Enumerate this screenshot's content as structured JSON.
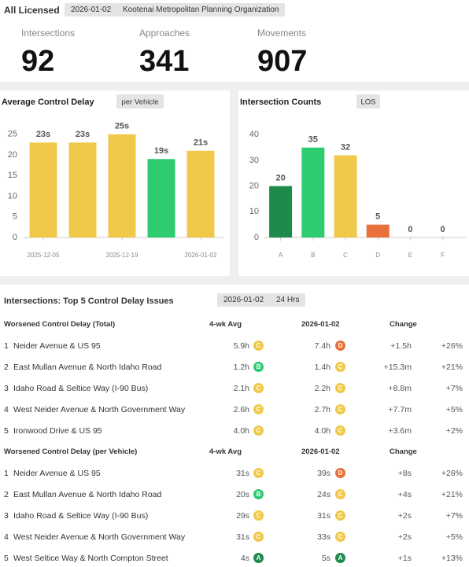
{
  "header": {
    "title": "All Licensed",
    "date": "2026-01-02",
    "org": "Kootenai Metropolitan Planning Organization"
  },
  "kpis": [
    {
      "label": "Intersections",
      "value": "92"
    },
    {
      "label": "Approaches",
      "value": "341"
    },
    {
      "label": "Movements",
      "value": "907"
    }
  ],
  "chart_data": [
    {
      "type": "bar",
      "title": "Average Control Delay",
      "button": "per Vehicle",
      "categories": [
        "2025-12-05",
        null,
        "2025-12-19",
        null,
        "2026-01-02"
      ],
      "values": [
        23,
        23,
        25,
        19,
        21
      ],
      "value_labels": [
        "23s",
        "23s",
        "25s",
        "19s",
        "21s"
      ],
      "colors": [
        "#f0c94a",
        "#f0c94a",
        "#f0c94a",
        "#2ecc71",
        "#f0c94a"
      ],
      "ylim": [
        0,
        28
      ],
      "yticks": [
        0,
        5,
        10,
        15,
        20,
        25
      ],
      "grid": false
    },
    {
      "type": "bar",
      "title": "Intersection Counts",
      "button": "LOS",
      "categories": [
        "A",
        "B",
        "C",
        "D",
        "E",
        "F"
      ],
      "values": [
        20,
        35,
        32,
        5,
        0,
        0
      ],
      "colors": [
        "#1e8a4c",
        "#2ecc71",
        "#f0c94a",
        "#e8703a",
        "#cccccc",
        "#cccccc"
      ],
      "ylim": [
        0,
        45
      ],
      "yticks": [
        0,
        10,
        20,
        30,
        40
      ],
      "grid": false
    }
  ],
  "table": {
    "title": "Intersections: Top 5 Control Delay Issues",
    "buttons": [
      "2026-01-02",
      "24 Hrs"
    ],
    "grade_colors": {
      "A": "#1e8a4c",
      "B": "#2ecc71",
      "C": "#f0c94a",
      "D": "#e8703a"
    },
    "groups": [
      {
        "name": "Worsened Control Delay (Total)",
        "columns": [
          "4-wk Avg",
          "2026-01-02",
          "Change"
        ],
        "rows": [
          [
            "1",
            "Neider Avenue & US 95",
            "5.9h",
            "C",
            "7.4h",
            "D",
            "+1.5h",
            "+26%"
          ],
          [
            "2",
            "East Mullan Avenue & North Idaho Road",
            "1.2h",
            "B",
            "1.4h",
            "C",
            "+15.3m",
            "+21%"
          ],
          [
            "3",
            "Idaho Road & Seltice Way (I-90 Bus)",
            "2.1h",
            "C",
            "2.2h",
            "C",
            "+8.8m",
            "+7%"
          ],
          [
            "4",
            "West Neider Avenue & North Government Way",
            "2.6h",
            "C",
            "2.7h",
            "C",
            "+7.7m",
            "+5%"
          ],
          [
            "5",
            "Ironwood Drive & US 95",
            "4.0h",
            "C",
            "4.0h",
            "C",
            "+3.6m",
            "+2%"
          ]
        ]
      },
      {
        "name": "Worsened Control Delay (per Vehicle)",
        "columns": [
          "4-wk Avg",
          "2026-01-02",
          "Change"
        ],
        "rows": [
          [
            "1",
            "Neider Avenue & US 95",
            "31s",
            "C",
            "39s",
            "D",
            "+8s",
            "+26%"
          ],
          [
            "2",
            "East Mullan Avenue & North Idaho Road",
            "20s",
            "B",
            "24s",
            "C",
            "+4s",
            "+21%"
          ],
          [
            "3",
            "Idaho Road & Seltice Way (I-90 Bus)",
            "29s",
            "C",
            "31s",
            "C",
            "+2s",
            "+7%"
          ],
          [
            "4",
            "West Neider Avenue & North Government Way",
            "31s",
            "C",
            "33s",
            "C",
            "+2s",
            "+5%"
          ],
          [
            "5",
            "West Seltice Way & North Compton Street",
            "4s",
            "A",
            "5s",
            "A",
            "+1s",
            "+13%"
          ]
        ]
      }
    ]
  }
}
